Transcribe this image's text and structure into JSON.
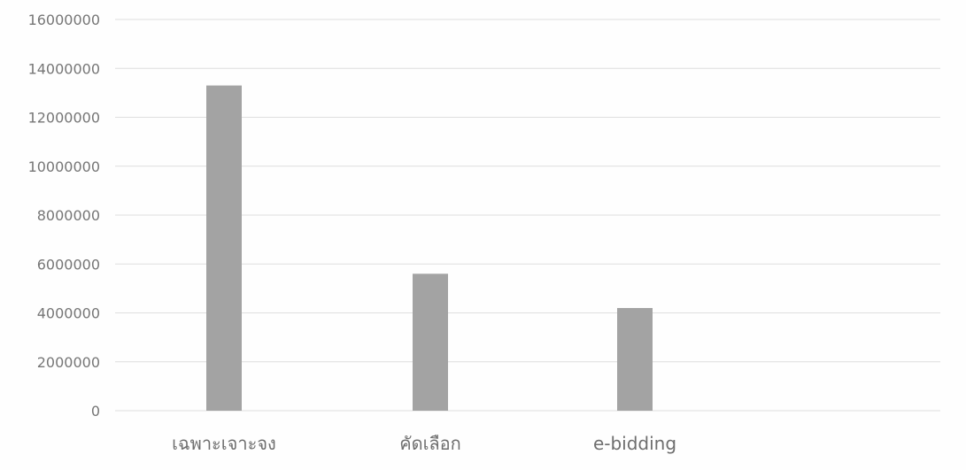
{
  "chart_data": {
    "type": "bar",
    "title": "",
    "xlabel": "",
    "ylabel": "",
    "categories": [
      "เฉพาะเจาะจง",
      "คัดเลือก",
      "e-bidding"
    ],
    "series": [
      {
        "values": [
          13300000,
          5600000,
          4200000
        ]
      }
    ],
    "ylim": [
      0,
      16000000
    ],
    "yticks": [
      "0",
      "2000000",
      "4000000",
      "6000000",
      "8000000",
      "10000000",
      "12000000",
      "14000000",
      "16000000"
    ],
    "grid": true,
    "legend": "none",
    "bar_color": "#a3a3a3",
    "grid_color": "#dedede",
    "text_color": "#767676"
  }
}
